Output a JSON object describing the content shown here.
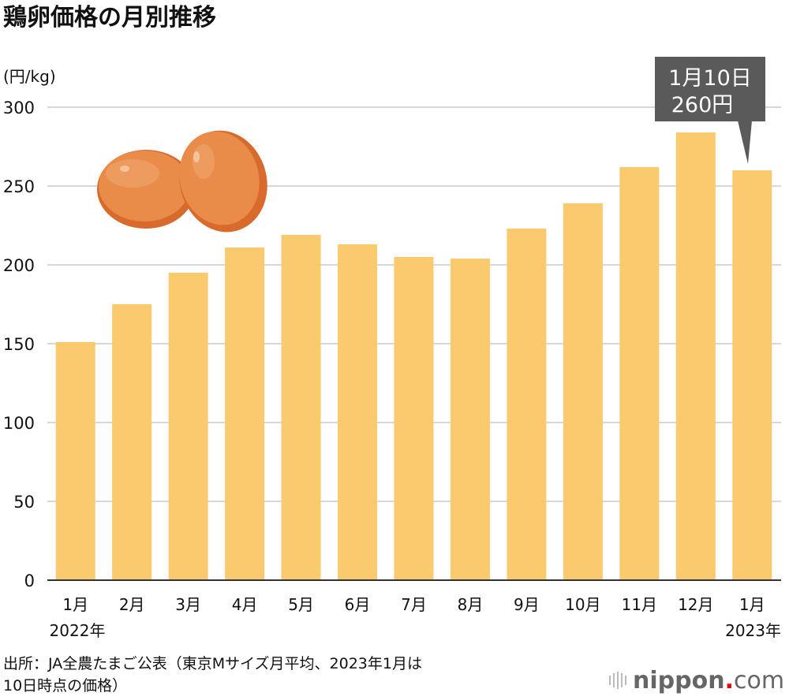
{
  "chart_data": {
    "type": "bar",
    "title": "鶏卵価格の月別推移",
    "ylabel": "(円/kg)",
    "xlabel": "",
    "ylim": [
      0,
      300
    ],
    "yticks": [
      0,
      50,
      100,
      150,
      200,
      250,
      300
    ],
    "grid": true,
    "categories": [
      "1月",
      "2月",
      "3月",
      "4月",
      "5月",
      "6月",
      "7月",
      "8月",
      "9月",
      "10月",
      "11月",
      "12月",
      "1月"
    ],
    "year_labels": {
      "first": "2022年",
      "last": "2023年"
    },
    "values": [
      151,
      175,
      195,
      211,
      219,
      213,
      205,
      204,
      223,
      239,
      262,
      284,
      260
    ],
    "bar_color": "#FBC96E",
    "annotation": {
      "line1": "1月10日",
      "line2": "260円",
      "target_index": 12,
      "bg": "#5a5a5a"
    }
  },
  "source": {
    "line1": "出所：JA全農たまご公表（東京Mサイズ月平均、2023年1月は",
    "line2": "10日時点の価格）"
  },
  "logo": {
    "text": "nippon",
    "dot": ".",
    "suffix": "com"
  }
}
